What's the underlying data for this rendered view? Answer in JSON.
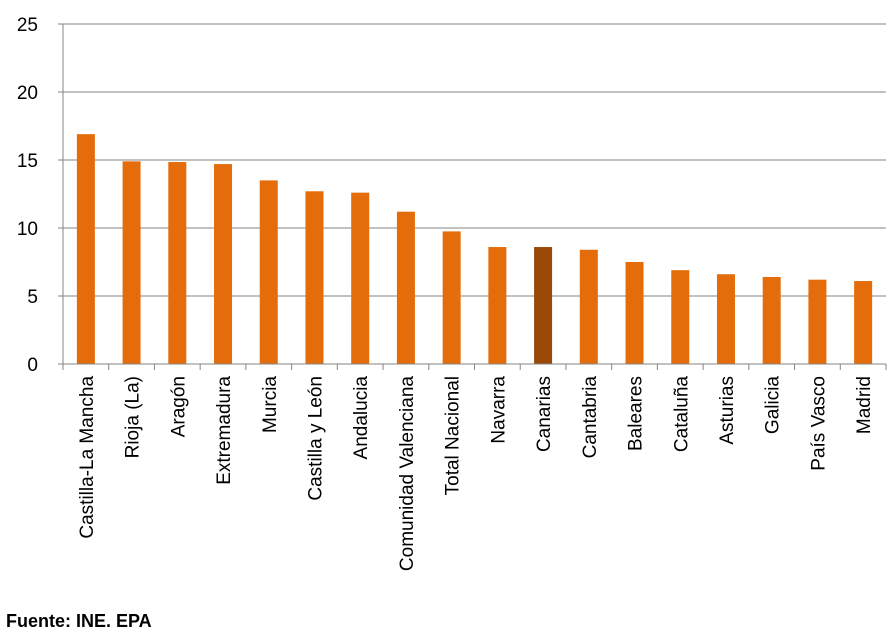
{
  "chart_data": {
    "type": "bar",
    "title": "",
    "xlabel": "",
    "ylabel": "",
    "ylim": [
      0,
      25
    ],
    "yticks": [
      0,
      5,
      10,
      15,
      20,
      25
    ],
    "grid": true,
    "legend": "none",
    "categories": [
      "Castilla-La Mancha",
      "Rioja (La)",
      "Aragón",
      "Extremadura",
      "Murcia",
      "Castilla y León",
      "Andalucia",
      "Comunidad Valenciana",
      "Total Nacional",
      "Navarra",
      "Canarias",
      "Cantabria",
      "Baleares",
      "Cataluña",
      "Asturias",
      "Galicia",
      "País Vasco",
      "Madrid"
    ],
    "values": [
      16.9,
      14.9,
      14.85,
      14.7,
      13.5,
      12.7,
      12.6,
      11.2,
      9.75,
      8.6,
      8.6,
      8.4,
      7.5,
      6.9,
      6.6,
      6.4,
      6.2,
      6.1
    ],
    "highlight_category": "Canarias",
    "colors": {
      "bar": "#E46C0A",
      "highlight": "#984807",
      "grid": "#868686",
      "axis": "#868686"
    }
  },
  "footer": {
    "source": "Fuente: INE. EPA"
  }
}
